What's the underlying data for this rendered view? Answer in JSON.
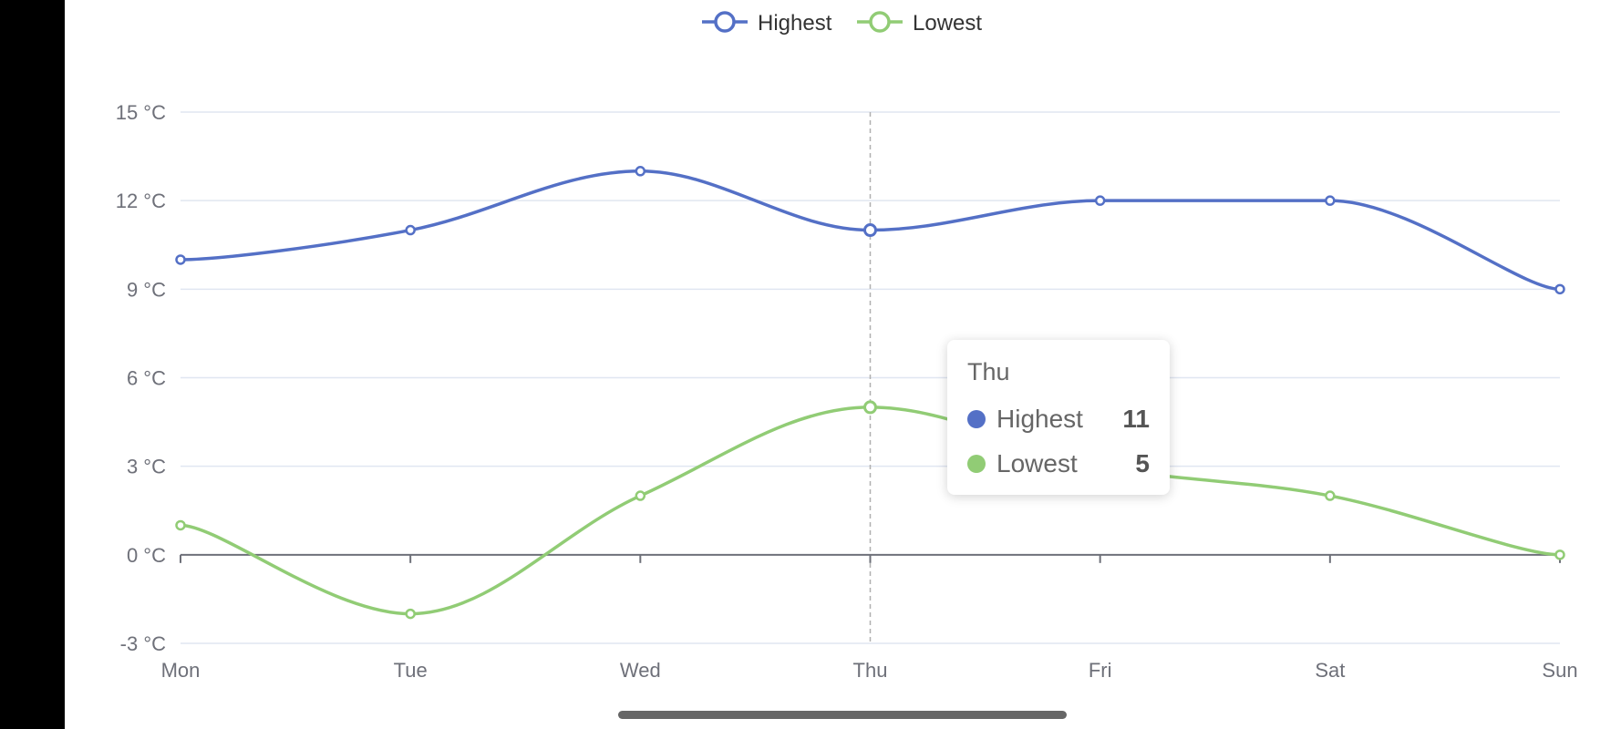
{
  "chart_data": {
    "type": "line",
    "categories": [
      "Mon",
      "Tue",
      "Wed",
      "Thu",
      "Fri",
      "Sat",
      "Sun"
    ],
    "series": [
      {
        "name": "Highest",
        "values": [
          10,
          11,
          13,
          11,
          12,
          12,
          9
        ],
        "color": "#5470c6"
      },
      {
        "name": "Lowest",
        "values": [
          1,
          -2,
          2,
          5,
          3,
          2,
          0
        ],
        "color": "#91cc75"
      }
    ],
    "y_ticks": [
      "-3 °C",
      "0 °C",
      "3 °C",
      "6 °C",
      "9 °C",
      "12 °C",
      "15 °C"
    ],
    "ylim": [
      -3,
      15
    ],
    "smooth": true,
    "grid": true,
    "legend_position": "top-center",
    "highlighted_category": "Thu"
  },
  "tooltip": {
    "title": "Thu",
    "rows": [
      {
        "name": "Highest",
        "value": "11",
        "color": "#5470c6"
      },
      {
        "name": "Lowest",
        "value": "5",
        "color": "#91cc75"
      }
    ]
  }
}
